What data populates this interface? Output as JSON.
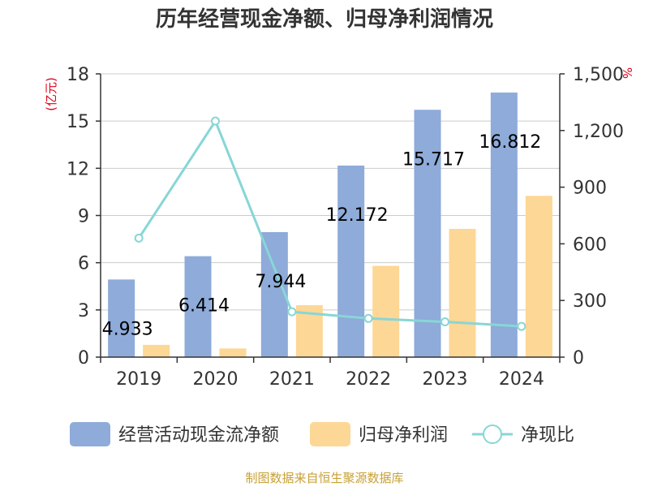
{
  "title": "历年经营现金净额、归母净利润情况",
  "source": "制图数据来自恒生聚源数据库",
  "left_unit": "(亿元)",
  "right_unit": "%",
  "colors": {
    "cashflow": "#8eabd9",
    "profit": "#fdd795",
    "ratio": "#88d6d6",
    "unit": "#e0001b",
    "source": "#c8a034",
    "grid": "#cccccc"
  },
  "chart_data": {
    "type": "bar",
    "categories": [
      "2019",
      "2020",
      "2021",
      "2022",
      "2023",
      "2024"
    ],
    "series": [
      {
        "name": "经营活动现金流净额",
        "axis": "left",
        "type": "bar",
        "values": [
          4.933,
          6.414,
          7.944,
          12.172,
          15.717,
          16.812
        ],
        "labels": [
          "4.933",
          "6.414",
          "7.944",
          "12.172",
          "15.717",
          "16.812"
        ]
      },
      {
        "name": "归母净利润",
        "axis": "left",
        "type": "bar",
        "values": [
          0.78,
          0.55,
          3.3,
          5.8,
          8.15,
          10.25
        ]
      },
      {
        "name": "净现比",
        "axis": "right",
        "type": "line",
        "values": [
          630,
          1250,
          240,
          205,
          187,
          163
        ]
      }
    ],
    "left_axis": {
      "ylim": [
        0,
        18
      ],
      "ticks": [
        "0",
        "3",
        "6",
        "9",
        "12",
        "15",
        "18"
      ]
    },
    "right_axis": {
      "ylim": [
        0,
        1500
      ],
      "ticks": [
        "0",
        "300",
        "600",
        "900",
        "1,200",
        "1,500"
      ]
    },
    "grid": true,
    "legend_position": "bottom"
  }
}
